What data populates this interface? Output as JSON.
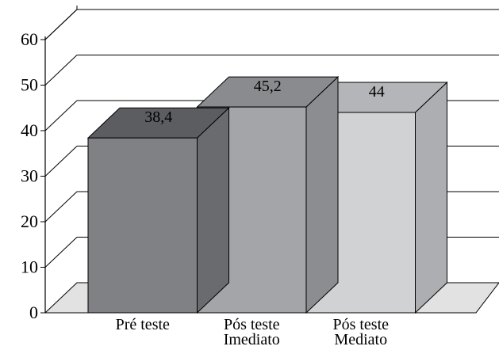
{
  "chart_data": {
    "type": "bar",
    "title": "",
    "xlabel": "",
    "ylabel": "",
    "ylim": [
      0,
      60
    ],
    "yticks": [
      0,
      10,
      20,
      30,
      40,
      50,
      60
    ],
    "grid": true,
    "style": "3d",
    "categories": [
      [
        "Pré teste"
      ],
      [
        "Pós teste",
        "Imediato"
      ],
      [
        "Pós teste",
        "Mediato"
      ]
    ],
    "values": [
      38.4,
      45.2,
      44
    ],
    "data_labels": [
      "38,4",
      "45,2",
      "44"
    ],
    "colors": {
      "front": [
        "#808184",
        "#a4a5a8",
        "#d1d2d4"
      ],
      "top": [
        "#5c5d60",
        "#8a8b8e",
        "#b4b5b8"
      ],
      "side": [
        "#6a6b6e",
        "#8c8d90",
        "#adaeb1"
      ],
      "floor": "#e2e2e3"
    }
  }
}
